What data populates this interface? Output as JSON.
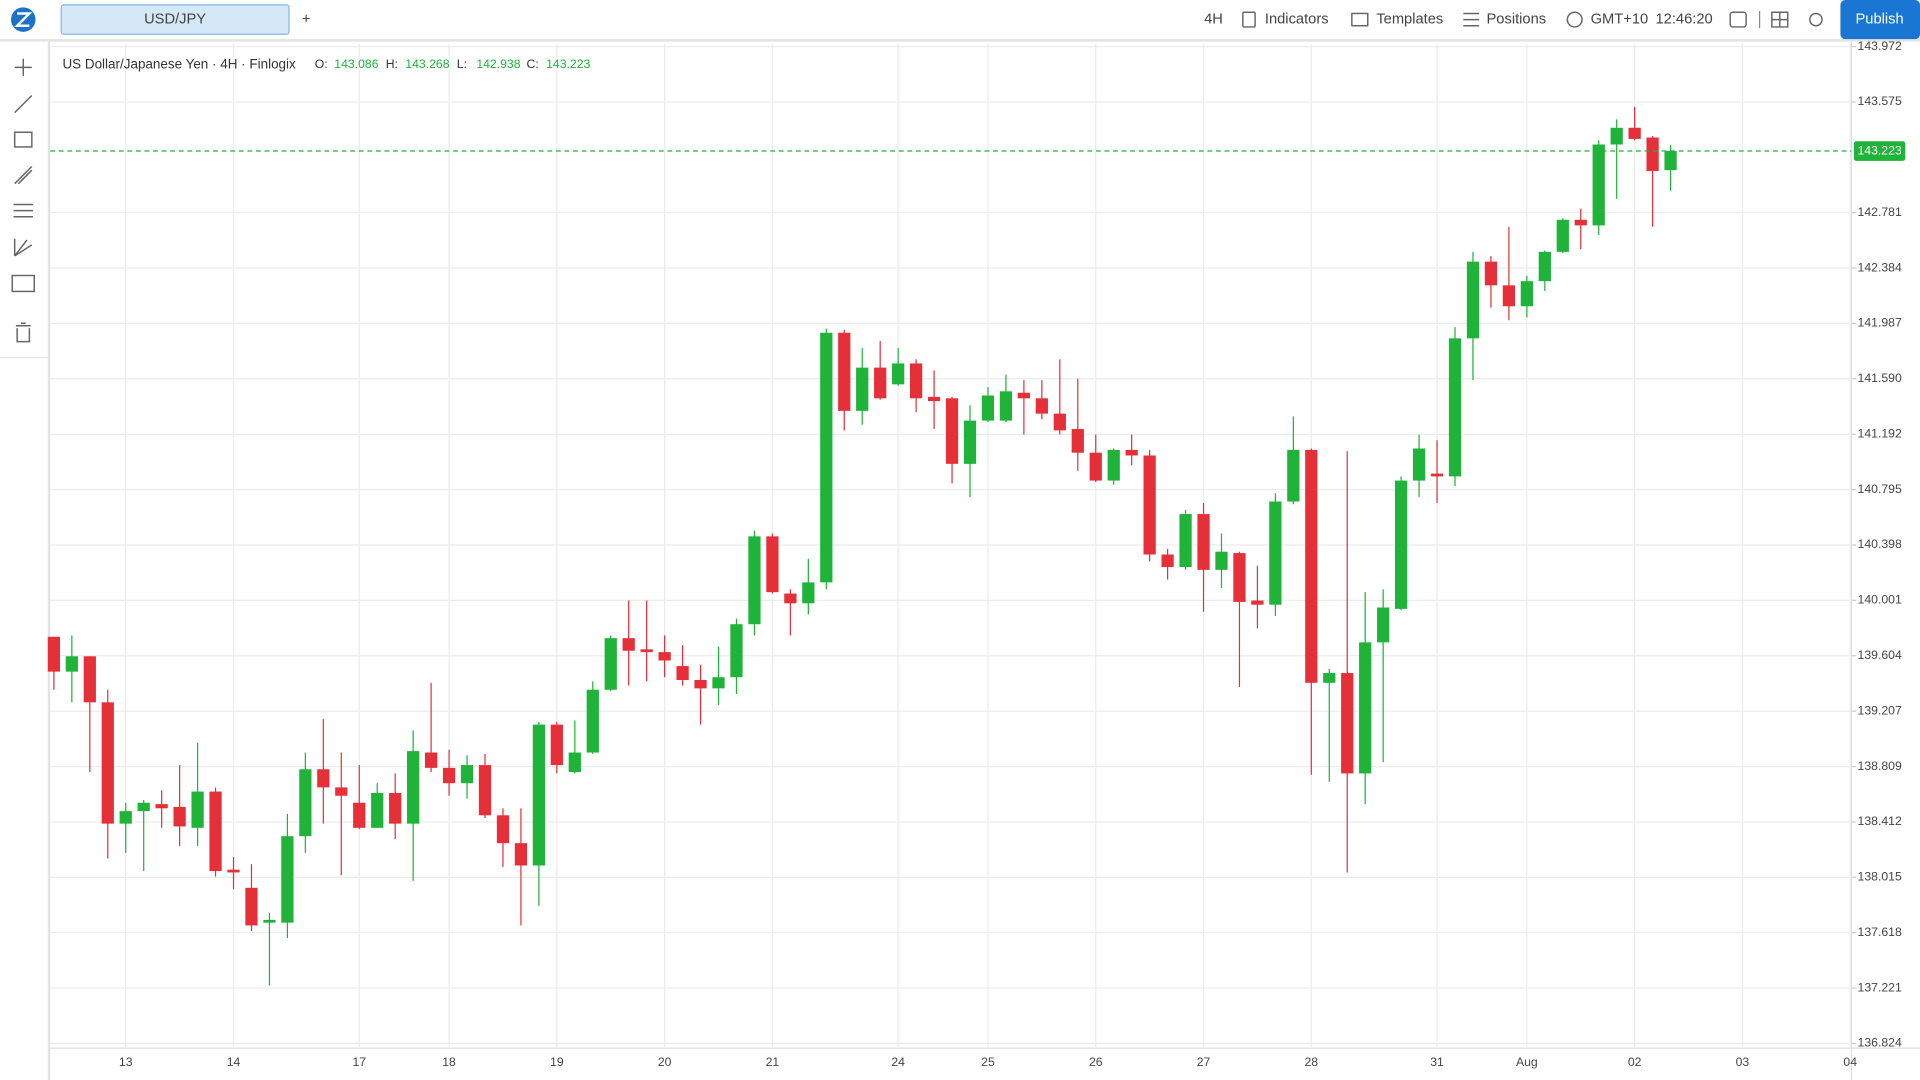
{
  "toolbar": {
    "symbol": "USD/JPY",
    "add": "+",
    "interval": "4H",
    "indicators": "Indicators",
    "templates": "Templates",
    "positions": "Positions",
    "timezone": "GMT+10",
    "clock": "12:46:20",
    "publish": "Publish"
  },
  "legend": {
    "labels": [
      "O:",
      "H:",
      "L:",
      "C:"
    ]
  },
  "chart_data": {
    "type": "candlestick",
    "title": "US Dollar/Japanese Yen · 4H · Finlogix",
    "up_color": "#1fb33a",
    "down_color": "#e5303a",
    "grid": true,
    "categories": [
      null,
      null,
      null,
      null,
      "13",
      null,
      null,
      null,
      null,
      null,
      "14",
      null,
      null,
      null,
      null,
      null,
      null,
      "17",
      null,
      null,
      null,
      null,
      "18",
      null,
      null,
      null,
      null,
      null,
      "19",
      null,
      null,
      null,
      null,
      null,
      "20",
      null,
      null,
      null,
      null,
      null,
      "21",
      null,
      null,
      null,
      null,
      null,
      null,
      "24",
      null,
      null,
      null,
      null,
      "25",
      null,
      null,
      null,
      null,
      null,
      "26",
      null,
      null,
      null,
      null,
      null,
      "27",
      null,
      null,
      null,
      null,
      null,
      "28",
      null,
      null,
      null,
      null,
      null,
      null,
      "31",
      null,
      null,
      null,
      null,
      "Aug",
      null,
      null,
      null,
      null,
      null,
      "02",
      null,
      null,
      null,
      null,
      null,
      "03",
      null,
      null,
      null,
      null,
      null,
      "04"
    ],
    "open": [
      139.74,
      139.49,
      139.6,
      139.27,
      138.4,
      138.49,
      138.54,
      138.52,
      138.37,
      138.63,
      138.07,
      137.94,
      137.69,
      137.69,
      138.31,
      138.79,
      138.66,
      138.55,
      138.37,
      138.62,
      138.4,
      138.91,
      138.8,
      138.69,
      138.82,
      138.46,
      138.26,
      138.1,
      139.11,
      138.77,
      138.91,
      139.36,
      139.73,
      139.65,
      139.63,
      139.53,
      139.43,
      139.37,
      139.45,
      139.83,
      140.46,
      140.05,
      139.98,
      140.13,
      141.92,
      141.36,
      141.67,
      141.55,
      141.7,
      141.46,
      141.45,
      140.98,
      141.29,
      141.29,
      141.49,
      141.45,
      141.34,
      141.23,
      141.06,
      140.86,
      141.08,
      141.04,
      140.33,
      140.24,
      140.62,
      140.22,
      140.34,
      140.0,
      139.97,
      140.71,
      141.08,
      139.41,
      139.48,
      138.76,
      139.7,
      139.94,
      140.86,
      140.91,
      140.89,
      141.88,
      142.43,
      142.26,
      142.11,
      142.29,
      142.5,
      142.73,
      142.69,
      143.27,
      143.39,
      143.32,
      143.086,
      null,
      null,
      null,
      null,
      null,
      null,
      null,
      null,
      null,
      null
    ],
    "high": [
      139.74,
      139.75,
      139.6,
      139.36,
      138.55,
      138.57,
      138.64,
      138.82,
      138.98,
      138.66,
      138.16,
      138.11,
      137.76,
      138.47,
      138.91,
      139.15,
      138.91,
      138.82,
      138.69,
      138.76,
      139.07,
      139.41,
      138.93,
      138.89,
      138.9,
      138.51,
      138.51,
      139.13,
      139.13,
      139.14,
      139.42,
      139.75,
      140.0,
      140.0,
      139.75,
      139.68,
      139.54,
      139.67,
      139.87,
      140.5,
      140.48,
      140.08,
      140.3,
      141.95,
      141.94,
      141.81,
      141.86,
      141.81,
      141.73,
      141.65,
      141.46,
      141.4,
      141.53,
      141.62,
      141.58,
      141.58,
      141.73,
      141.59,
      141.19,
      141.09,
      141.19,
      141.08,
      140.37,
      140.65,
      140.7,
      140.48,
      140.35,
      140.25,
      140.77,
      141.32,
      141.09,
      139.51,
      141.07,
      140.06,
      140.08,
      140.89,
      141.19,
      141.15,
      141.96,
      142.5,
      142.47,
      142.68,
      142.33,
      142.51,
      142.74,
      142.81,
      143.3,
      143.45,
      143.54,
      143.33,
      143.268,
      null,
      null,
      null,
      null,
      null,
      null,
      null,
      null,
      null,
      null
    ],
    "low": [
      139.36,
      139.27,
      138.77,
      138.15,
      138.19,
      138.06,
      138.37,
      138.24,
      138.24,
      138.02,
      137.93,
      137.63,
      137.24,
      137.58,
      138.19,
      138.4,
      138.03,
      138.36,
      138.37,
      138.29,
      137.99,
      138.77,
      138.6,
      138.58,
      138.44,
      138.09,
      137.67,
      137.81,
      138.76,
      138.76,
      138.9,
      139.35,
      139.39,
      139.42,
      139.45,
      139.39,
      139.11,
      139.25,
      139.33,
      139.75,
      140.05,
      139.75,
      139.9,
      140.08,
      141.22,
      141.26,
      141.44,
      141.54,
      141.35,
      141.23,
      140.84,
      140.74,
      141.28,
      141.28,
      141.19,
      141.3,
      141.19,
      140.93,
      140.85,
      140.83,
      140.97,
      140.28,
      140.15,
      140.22,
      139.92,
      140.09,
      139.38,
      139.8,
      139.89,
      140.69,
      138.75,
      138.7,
      138.05,
      138.54,
      138.84,
      139.93,
      140.74,
      140.7,
      140.82,
      141.58,
      142.1,
      142.01,
      142.03,
      142.22,
      142.49,
      142.52,
      142.62,
      142.88,
      143.3,
      142.68,
      142.938,
      null,
      null,
      null,
      null,
      null,
      null,
      null,
      null,
      null,
      null
    ],
    "close": [
      139.49,
      139.6,
      139.27,
      138.4,
      138.49,
      138.55,
      138.51,
      138.38,
      138.63,
      138.06,
      138.05,
      137.67,
      137.71,
      138.31,
      138.79,
      138.66,
      138.6,
      138.37,
      138.62,
      138.4,
      138.92,
      138.8,
      138.69,
      138.82,
      138.46,
      138.26,
      138.1,
      139.11,
      138.82,
      138.91,
      139.36,
      139.73,
      139.64,
      139.63,
      139.57,
      139.43,
      139.37,
      139.45,
      139.83,
      140.46,
      140.06,
      139.98,
      140.13,
      141.92,
      141.36,
      141.67,
      141.45,
      141.7,
      141.45,
      141.43,
      140.98,
      141.29,
      141.47,
      141.5,
      141.45,
      141.34,
      141.22,
      141.06,
      140.86,
      141.08,
      141.04,
      140.33,
      140.24,
      140.62,
      140.22,
      140.35,
      139.99,
      139.97,
      140.71,
      141.08,
      139.41,
      139.48,
      138.76,
      139.7,
      139.95,
      140.86,
      141.09,
      140.89,
      141.88,
      142.43,
      142.26,
      142.11,
      142.29,
      142.5,
      142.73,
      142.69,
      143.27,
      143.39,
      143.31,
      143.08,
      143.223,
      null,
      null,
      null,
      null,
      null,
      null,
      null,
      null,
      null,
      null
    ],
    "ylim": [
      136.79,
      143.99
    ],
    "yticks": [
      136.824,
      137.221,
      137.618,
      138.015,
      138.412,
      138.809,
      139.207,
      139.604,
      140.001,
      140.398,
      140.795,
      141.192,
      {
        "value": 141.59,
        "label": "141.590"
      },
      141.987,
      142.384,
      142.781,
      143.575,
      143.972
    ]
  }
}
